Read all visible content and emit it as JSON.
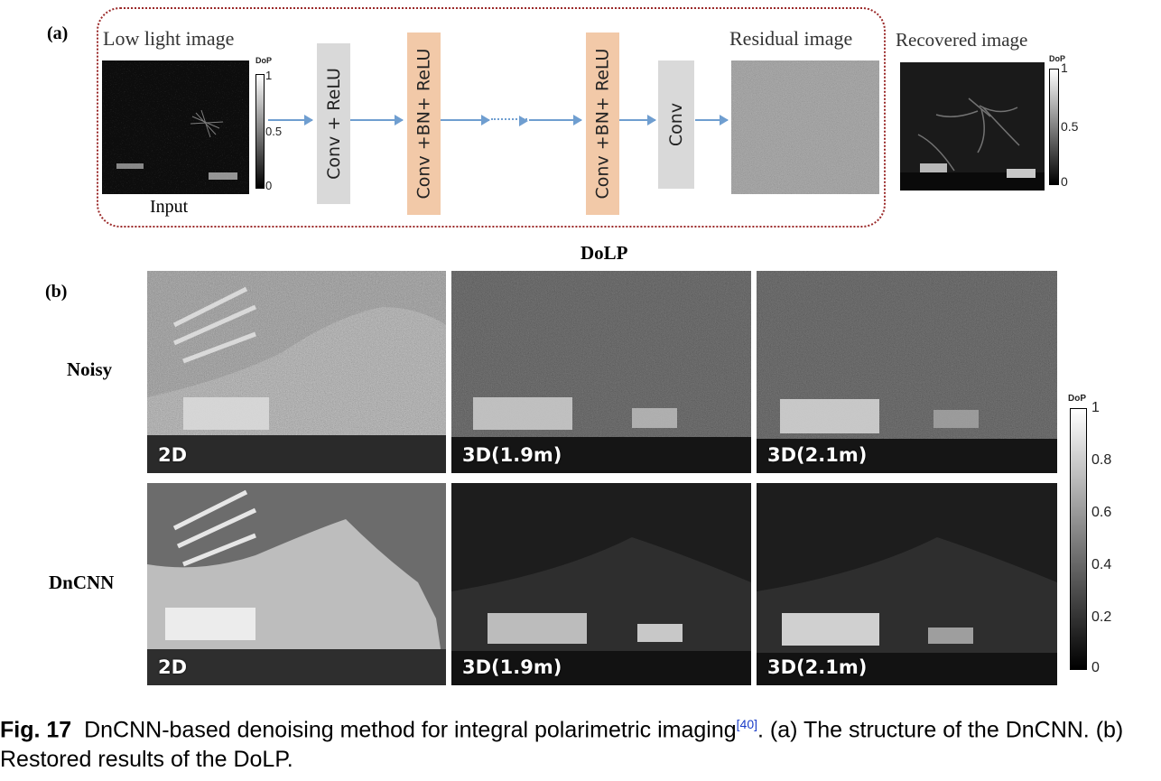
{
  "panel_a": {
    "label": "(a)",
    "low_light_title": "Low light image",
    "input_label": "Input",
    "colorbar_left": {
      "title": "DoP",
      "ticks": [
        "1",
        "0.5",
        "0"
      ]
    },
    "blocks": [
      "Conv + ReLU",
      "Conv +BN+ ReLU",
      "Conv +BN+ ReLU",
      "Conv"
    ],
    "residual_title": "Residual image",
    "recovered_title": "Recovered image",
    "colorbar_right": {
      "title": "DoP",
      "ticks": [
        "1",
        "0.5",
        "0"
      ]
    },
    "dolp_label": "DoLP"
  },
  "panel_b": {
    "label": "(b)",
    "row_labels": [
      "Noisy",
      "DnCNN"
    ],
    "tiles": [
      [
        "2D",
        "3D(1.9m)",
        "3D(2.1m)"
      ],
      [
        "2D",
        "3D(1.9m)",
        "3D(2.1m)"
      ]
    ],
    "colorbar": {
      "title": "DoP",
      "ticks": [
        "1",
        "0.8",
        "0.6",
        "0.4",
        "0.2",
        "0"
      ]
    }
  },
  "caption": {
    "fig_label": "Fig. 17",
    "text_before_ref": "DnCNN-based denoising method for integral polarimetric imaging",
    "ref": "[40]",
    "text_after_ref": ". (a) The structure of the DnCNN. (b) Restored results of the DoLP."
  }
}
